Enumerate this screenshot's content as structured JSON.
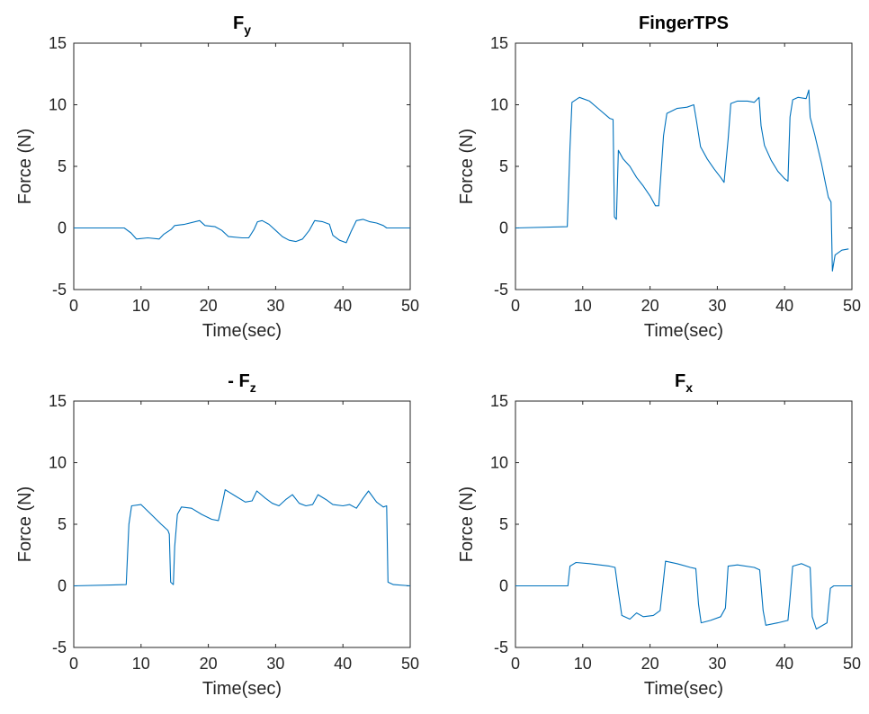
{
  "figure": {
    "background": "#ffffff",
    "series_color": "#0072bd"
  },
  "chart_data": [
    {
      "type": "line",
      "title": "F",
      "title_subscript": "y",
      "xlabel": "Time(sec)",
      "ylabel": "Force (N)",
      "xlim": [
        0,
        50
      ],
      "ylim": [
        -5,
        15
      ],
      "xticks": [
        "0",
        "10",
        "20",
        "30",
        "40",
        "50"
      ],
      "yticks": [
        "-5",
        "0",
        "5",
        "10",
        "15"
      ],
      "grid": false,
      "series": [
        {
          "color": "#0072bd",
          "points": [
            [
              0,
              0
            ],
            [
              7.5,
              0
            ],
            [
              8.5,
              -0.4
            ],
            [
              9.3,
              -0.9
            ],
            [
              11,
              -0.8
            ],
            [
              12.7,
              -0.9
            ],
            [
              13.4,
              -0.5
            ],
            [
              14.5,
              -0.1
            ],
            [
              15,
              0.2
            ],
            [
              16.5,
              0.3
            ],
            [
              18.7,
              0.6
            ],
            [
              19.5,
              0.2
            ],
            [
              21,
              0.1
            ],
            [
              22,
              -0.2
            ],
            [
              23,
              -0.7
            ],
            [
              25,
              -0.8
            ],
            [
              26,
              -0.8
            ],
            [
              26.8,
              -0.1
            ],
            [
              27.3,
              0.5
            ],
            [
              28,
              0.6
            ],
            [
              29,
              0.3
            ],
            [
              30,
              -0.2
            ],
            [
              31,
              -0.7
            ],
            [
              32,
              -1.0
            ],
            [
              33,
              -1.1
            ],
            [
              34,
              -0.9
            ],
            [
              35,
              -0.2
            ],
            [
              35.8,
              0.6
            ],
            [
              37,
              0.5
            ],
            [
              38,
              0.3
            ],
            [
              38.5,
              -0.6
            ],
            [
              39.5,
              -1.0
            ],
            [
              40.5,
              -1.2
            ],
            [
              41.2,
              -0.3
            ],
            [
              42,
              0.6
            ],
            [
              43,
              0.7
            ],
            [
              44,
              0.5
            ],
            [
              45,
              0.4
            ],
            [
              46,
              0.2
            ],
            [
              46.5,
              0
            ],
            [
              50,
              0
            ]
          ]
        }
      ]
    },
    {
      "type": "line",
      "title": "FingerTPS",
      "title_subscript": "",
      "xlabel": "Time(sec)",
      "ylabel": "Force (N)",
      "xlim": [
        0,
        50
      ],
      "ylim": [
        -5,
        15
      ],
      "xticks": [
        "0",
        "10",
        "20",
        "30",
        "40",
        "50"
      ],
      "yticks": [
        "-5",
        "0",
        "5",
        "10",
        "15"
      ],
      "grid": false,
      "series": [
        {
          "color": "#0072bd",
          "points": [
            [
              0,
              0
            ],
            [
              7.7,
              0.1
            ],
            [
              8.1,
              6.5
            ],
            [
              8.4,
              10.2
            ],
            [
              9.5,
              10.6
            ],
            [
              11,
              10.3
            ],
            [
              12.5,
              9.6
            ],
            [
              14,
              8.9
            ],
            [
              14.5,
              8.8
            ],
            [
              14.7,
              0.9
            ],
            [
              15,
              0.7
            ],
            [
              15.3,
              6.3
            ],
            [
              16,
              5.6
            ],
            [
              17,
              5.0
            ],
            [
              18,
              4.1
            ],
            [
              19,
              3.4
            ],
            [
              20,
              2.6
            ],
            [
              20.8,
              1.8
            ],
            [
              21.3,
              1.8
            ],
            [
              22,
              7.5
            ],
            [
              22.5,
              9.3
            ],
            [
              24,
              9.7
            ],
            [
              25.5,
              9.8
            ],
            [
              26.5,
              10.0
            ],
            [
              26.9,
              8.7
            ],
            [
              27.5,
              6.6
            ],
            [
              28.5,
              5.6
            ],
            [
              29.5,
              4.8
            ],
            [
              30.5,
              4.1
            ],
            [
              31,
              3.7
            ],
            [
              31.6,
              7.2
            ],
            [
              32,
              10.1
            ],
            [
              33,
              10.3
            ],
            [
              34.5,
              10.3
            ],
            [
              35.5,
              10.2
            ],
            [
              36.2,
              10.6
            ],
            [
              36.5,
              8.3
            ],
            [
              37,
              6.7
            ],
            [
              38,
              5.5
            ],
            [
              39,
              4.6
            ],
            [
              40,
              4.0
            ],
            [
              40.5,
              3.8
            ],
            [
              40.8,
              9.0
            ],
            [
              41.2,
              10.4
            ],
            [
              42,
              10.6
            ],
            [
              43.2,
              10.5
            ],
            [
              43.6,
              11.2
            ],
            [
              43.8,
              9.0
            ],
            [
              44.5,
              7.5
            ],
            [
              45.5,
              5.2
            ],
            [
              46,
              3.8
            ],
            [
              46.5,
              2.5
            ],
            [
              46.9,
              2.1
            ],
            [
              47.1,
              -3.5
            ],
            [
              47.5,
              -2.2
            ],
            [
              48.5,
              -1.8
            ],
            [
              49.5,
              -1.7
            ]
          ]
        }
      ]
    },
    {
      "type": "line",
      "title": "- F",
      "title_subscript": "z",
      "xlabel": "Time(sec)",
      "ylabel": "Force (N)",
      "xlim": [
        0,
        50
      ],
      "ylim": [
        -5,
        15
      ],
      "xticks": [
        "0",
        "10",
        "20",
        "30",
        "40",
        "50"
      ],
      "yticks": [
        "-5",
        "0",
        "5",
        "10",
        "15"
      ],
      "grid": false,
      "series": [
        {
          "color": "#0072bd",
          "points": [
            [
              0,
              0
            ],
            [
              7.8,
              0.1
            ],
            [
              8.2,
              5.0
            ],
            [
              8.6,
              6.5
            ],
            [
              10,
              6.6
            ],
            [
              11.5,
              5.8
            ],
            [
              13,
              5.0
            ],
            [
              14,
              4.5
            ],
            [
              14.2,
              4.2
            ],
            [
              14.4,
              0.3
            ],
            [
              14.8,
              0.1
            ],
            [
              15,
              3.2
            ],
            [
              15.4,
              5.8
            ],
            [
              16,
              6.4
            ],
            [
              17.5,
              6.3
            ],
            [
              19,
              5.8
            ],
            [
              20.5,
              5.4
            ],
            [
              21.5,
              5.3
            ],
            [
              22,
              6.5
            ],
            [
              22.5,
              7.8
            ],
            [
              24,
              7.3
            ],
            [
              25.5,
              6.8
            ],
            [
              26.5,
              6.9
            ],
            [
              27.2,
              7.7
            ],
            [
              28.5,
              7.1
            ],
            [
              29.5,
              6.7
            ],
            [
              30.5,
              6.5
            ],
            [
              31.5,
              7.0
            ],
            [
              32.5,
              7.4
            ],
            [
              33.5,
              6.7
            ],
            [
              34.5,
              6.5
            ],
            [
              35.5,
              6.6
            ],
            [
              36.3,
              7.4
            ],
            [
              37.5,
              7.0
            ],
            [
              38.5,
              6.6
            ],
            [
              40,
              6.5
            ],
            [
              41,
              6.6
            ],
            [
              42,
              6.3
            ],
            [
              43,
              7.1
            ],
            [
              43.8,
              7.7
            ],
            [
              45,
              6.8
            ],
            [
              46,
              6.4
            ],
            [
              46.5,
              6.5
            ],
            [
              46.7,
              0.3
            ],
            [
              47.5,
              0.1
            ],
            [
              50,
              0
            ]
          ]
        }
      ]
    },
    {
      "type": "line",
      "title": "F",
      "title_subscript": "x",
      "xlabel": "Time(sec)",
      "ylabel": "Force (N)",
      "xlim": [
        0,
        50
      ],
      "ylim": [
        -5,
        15
      ],
      "xticks": [
        "0",
        "10",
        "20",
        "30",
        "40",
        "50"
      ],
      "yticks": [
        "-5",
        "0",
        "5",
        "10",
        "15"
      ],
      "grid": false,
      "series": [
        {
          "color": "#0072bd",
          "points": [
            [
              0,
              0
            ],
            [
              7.8,
              0
            ],
            [
              8.1,
              1.6
            ],
            [
              9,
              1.9
            ],
            [
              11,
              1.8
            ],
            [
              12.5,
              1.7
            ],
            [
              14,
              1.6
            ],
            [
              14.8,
              1.5
            ],
            [
              15.3,
              -0.5
            ],
            [
              15.8,
              -2.4
            ],
            [
              17,
              -2.7
            ],
            [
              18,
              -2.2
            ],
            [
              19,
              -2.5
            ],
            [
              20.5,
              -2.4
            ],
            [
              21.5,
              -2.0
            ],
            [
              22,
              0.5
            ],
            [
              22.3,
              2.0
            ],
            [
              24,
              1.8
            ],
            [
              26,
              1.5
            ],
            [
              26.8,
              1.4
            ],
            [
              27.2,
              -1.5
            ],
            [
              27.6,
              -3.0
            ],
            [
              29,
              -2.8
            ],
            [
              30.5,
              -2.5
            ],
            [
              31.2,
              -1.8
            ],
            [
              31.6,
              1.6
            ],
            [
              33,
              1.7
            ],
            [
              35.5,
              1.5
            ],
            [
              36.3,
              1.3
            ],
            [
              36.8,
              -2.0
            ],
            [
              37.2,
              -3.2
            ],
            [
              39,
              -3.0
            ],
            [
              40.5,
              -2.8
            ],
            [
              40.8,
              -1.0
            ],
            [
              41.2,
              1.6
            ],
            [
              42.5,
              1.8
            ],
            [
              43.8,
              1.5
            ],
            [
              44.1,
              -2.5
            ],
            [
              44.7,
              -3.5
            ],
            [
              46.3,
              -3.0
            ],
            [
              46.8,
              -0.2
            ],
            [
              47.3,
              0
            ],
            [
              50,
              0
            ]
          ]
        }
      ]
    }
  ]
}
